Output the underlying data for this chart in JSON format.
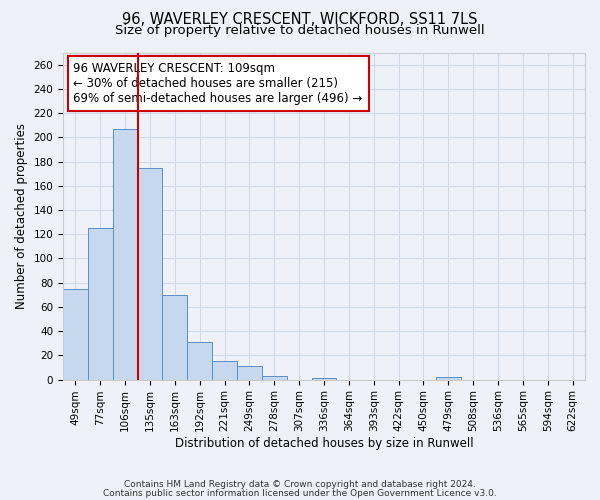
{
  "title1": "96, WAVERLEY CRESCENT, WICKFORD, SS11 7LS",
  "title2": "Size of property relative to detached houses in Runwell",
  "xlabel": "Distribution of detached houses by size in Runwell",
  "ylabel": "Number of detached properties",
  "categories": [
    "49sqm",
    "77sqm",
    "106sqm",
    "135sqm",
    "163sqm",
    "192sqm",
    "221sqm",
    "249sqm",
    "278sqm",
    "307sqm",
    "336sqm",
    "364sqm",
    "393sqm",
    "422sqm",
    "450sqm",
    "479sqm",
    "508sqm",
    "536sqm",
    "565sqm",
    "594sqm",
    "622sqm"
  ],
  "values": [
    75,
    125,
    207,
    175,
    70,
    31,
    15,
    11,
    3,
    0,
    1,
    0,
    0,
    0,
    0,
    2,
    0,
    0,
    0,
    0,
    0
  ],
  "bar_color": "#c5d8ee",
  "bar_edge_color": "#5b8ec4",
  "red_line_x": 2.5,
  "annotation_line1": "96 WAVERLEY CRESCENT: 109sqm",
  "annotation_line2": "← 30% of detached houses are smaller (215)",
  "annotation_line3": "69% of semi-detached houses are larger (496) →",
  "annotation_box_color": "#ffffff",
  "annotation_box_edge": "#cc0000",
  "ylim": [
    0,
    270
  ],
  "yticks": [
    0,
    20,
    40,
    60,
    80,
    100,
    120,
    140,
    160,
    180,
    200,
    220,
    240,
    260
  ],
  "grid_color": "#d0d8e8",
  "background_color": "#eef2f8",
  "footer1": "Contains HM Land Registry data © Crown copyright and database right 2024.",
  "footer2": "Contains public sector information licensed under the Open Government Licence v3.0.",
  "title1_fontsize": 10.5,
  "title2_fontsize": 9.5,
  "xlabel_fontsize": 8.5,
  "ylabel_fontsize": 8.5,
  "tick_fontsize": 7.5,
  "annotation_fontsize": 8.5,
  "footer_fontsize": 6.5
}
